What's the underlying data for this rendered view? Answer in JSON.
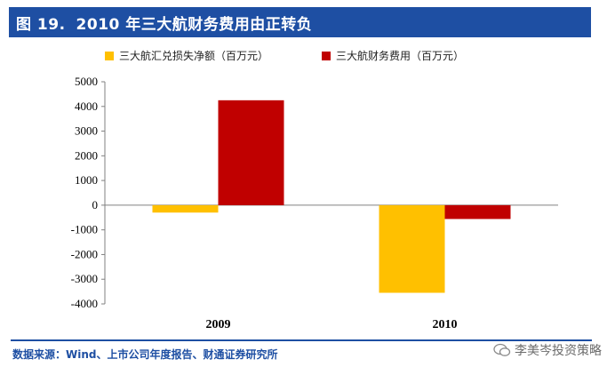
{
  "header": {
    "figure_label": "图 19.",
    "title": "2010 年三大航财务费用由正转负"
  },
  "footer": {
    "source": "数据来源：Wind、上市公司年度报告、财通证券研究所",
    "watermark": "李美岑投资策略"
  },
  "colors": {
    "title_bar": "#1E4FA3",
    "series_fx": "#FFC000",
    "series_fin": "#C00000"
  },
  "chart_data": {
    "type": "bar",
    "categories": [
      "2009",
      "2010"
    ],
    "series": [
      {
        "name": "三大航汇兑损失净额（百万元）",
        "values": [
          -300,
          -3550
        ],
        "color": "#FFC000"
      },
      {
        "name": "三大航财务费用（百万元）",
        "values": [
          4250,
          -560
        ],
        "color": "#C00000"
      }
    ],
    "ylim": [
      -4000,
      5000
    ],
    "yticks": [
      5000,
      4000,
      3000,
      2000,
      1000,
      0,
      -1000,
      -2000,
      -3000,
      -4000
    ],
    "grid": false,
    "legend_position": "top"
  }
}
